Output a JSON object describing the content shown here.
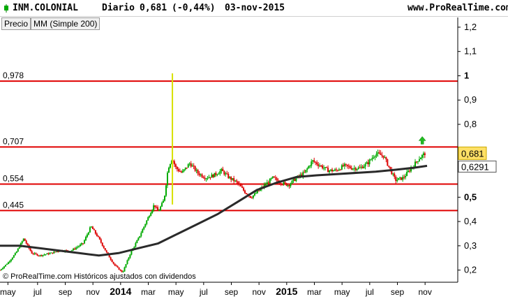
{
  "header": {
    "symbol": "INM.COLONIAL",
    "period": "Diario",
    "price": "0,681",
    "change": "(-0,44%)",
    "date": "03-nov-2015",
    "site": "www.ProRealTime.com"
  },
  "indicators": [
    "Precio",
    "MM (Simple 200)"
  ],
  "watermark": "© ProRealTime.com Históricos ajustados con dividendos",
  "colors": {
    "up": "#00aa00",
    "down": "#dd0000",
    "hline": "#e00000",
    "ma": "#2a2a2a",
    "spike": "#d8e000",
    "arrow": "#22bb22"
  },
  "chart_data": {
    "type": "candlestick",
    "y_axis": {
      "min": 0.15,
      "max": 1.24,
      "ticks": [
        {
          "v": 1.2,
          "label": "1,2",
          "bold": false
        },
        {
          "v": 1.1,
          "label": "1,1",
          "bold": false
        },
        {
          "v": 1.0,
          "label": "1",
          "bold": true
        },
        {
          "v": 0.9,
          "label": "0,9",
          "bold": false
        },
        {
          "v": 0.8,
          "label": "0,8",
          "bold": false
        },
        {
          "v": 0.5,
          "label": "0,5",
          "bold": true
        },
        {
          "v": 0.4,
          "label": "0,4",
          "bold": false
        },
        {
          "v": 0.3,
          "label": "0,3",
          "bold": false
        },
        {
          "v": 0.2,
          "label": "0,2",
          "bold": false
        }
      ]
    },
    "x_axis": {
      "labels": [
        {
          "label": "may",
          "t": 0.02,
          "bold": false
        },
        {
          "label": "jul",
          "t": 0.095,
          "bold": false
        },
        {
          "label": "sep",
          "t": 0.165,
          "bold": false
        },
        {
          "label": "nov",
          "t": 0.235,
          "bold": false
        },
        {
          "label": "2014",
          "t": 0.305,
          "bold": true
        },
        {
          "label": "mar",
          "t": 0.375,
          "bold": false
        },
        {
          "label": "may",
          "t": 0.445,
          "bold": false
        },
        {
          "label": "jul",
          "t": 0.515,
          "bold": false
        },
        {
          "label": "sep",
          "t": 0.585,
          "bold": false
        },
        {
          "label": "nov",
          "t": 0.655,
          "bold": false
        },
        {
          "label": "2015",
          "t": 0.725,
          "bold": true
        },
        {
          "label": "mar",
          "t": 0.795,
          "bold": false
        },
        {
          "label": "may",
          "t": 0.865,
          "bold": false
        },
        {
          "label": "jul",
          "t": 0.935,
          "bold": false
        },
        {
          "label": "sep",
          "t": 1.005,
          "bold": false
        },
        {
          "label": "nov",
          "t": 1.075,
          "bold": false
        }
      ]
    },
    "horizontal_lines": [
      {
        "value": 0.978,
        "label": "0,978"
      },
      {
        "value": 0.707,
        "label": "0,707"
      },
      {
        "value": 0.554,
        "label": "0,554"
      },
      {
        "value": 0.445,
        "label": "0,445"
      }
    ],
    "price_path": [
      [
        0.0,
        0.2
      ],
      [
        0.02,
        0.23
      ],
      [
        0.04,
        0.27
      ],
      [
        0.06,
        0.33
      ],
      [
        0.08,
        0.27
      ],
      [
        0.1,
        0.26
      ],
      [
        0.13,
        0.27
      ],
      [
        0.15,
        0.28
      ],
      [
        0.18,
        0.28
      ],
      [
        0.21,
        0.31
      ],
      [
        0.23,
        0.38
      ],
      [
        0.25,
        0.33
      ],
      [
        0.27,
        0.27
      ],
      [
        0.29,
        0.22
      ],
      [
        0.31,
        0.19
      ],
      [
        0.33,
        0.27
      ],
      [
        0.35,
        0.33
      ],
      [
        0.37,
        0.4
      ],
      [
        0.39,
        0.47
      ],
      [
        0.4,
        0.44
      ],
      [
        0.415,
        0.49
      ],
      [
        0.425,
        0.62
      ],
      [
        0.435,
        0.66
      ],
      [
        0.445,
        0.62
      ],
      [
        0.46,
        0.6
      ],
      [
        0.48,
        0.64
      ],
      [
        0.5,
        0.6
      ],
      [
        0.52,
        0.58
      ],
      [
        0.54,
        0.59
      ],
      [
        0.56,
        0.61
      ],
      [
        0.58,
        0.58
      ],
      [
        0.6,
        0.56
      ],
      [
        0.62,
        0.52
      ],
      [
        0.635,
        0.5
      ],
      [
        0.65,
        0.52
      ],
      [
        0.67,
        0.55
      ],
      [
        0.69,
        0.58
      ],
      [
        0.71,
        0.56
      ],
      [
        0.73,
        0.55
      ],
      [
        0.75,
        0.58
      ],
      [
        0.77,
        0.6
      ],
      [
        0.79,
        0.65
      ],
      [
        0.81,
        0.63
      ],
      [
        0.83,
        0.61
      ],
      [
        0.85,
        0.61
      ],
      [
        0.87,
        0.63
      ],
      [
        0.89,
        0.62
      ],
      [
        0.91,
        0.62
      ],
      [
        0.93,
        0.64
      ],
      [
        0.95,
        0.68
      ],
      [
        0.97,
        0.67
      ],
      [
        0.985,
        0.62
      ],
      [
        1.0,
        0.57
      ],
      [
        1.02,
        0.58
      ],
      [
        1.04,
        0.62
      ],
      [
        1.06,
        0.66
      ],
      [
        1.075,
        0.681
      ]
    ],
    "ma_path": [
      [
        0.0,
        0.3
      ],
      [
        0.05,
        0.3
      ],
      [
        0.1,
        0.29
      ],
      [
        0.15,
        0.28
      ],
      [
        0.2,
        0.27
      ],
      [
        0.25,
        0.26
      ],
      [
        0.3,
        0.27
      ],
      [
        0.35,
        0.29
      ],
      [
        0.4,
        0.31
      ],
      [
        0.45,
        0.35
      ],
      [
        0.5,
        0.39
      ],
      [
        0.55,
        0.43
      ],
      [
        0.6,
        0.48
      ],
      [
        0.65,
        0.53
      ],
      [
        0.7,
        0.56
      ],
      [
        0.75,
        0.583
      ],
      [
        0.8,
        0.59
      ],
      [
        0.85,
        0.595
      ],
      [
        0.9,
        0.6
      ],
      [
        0.95,
        0.605
      ],
      [
        1.0,
        0.613
      ],
      [
        1.05,
        0.622
      ],
      [
        1.08,
        0.629
      ]
    ],
    "spike": {
      "t": 0.436,
      "low": 0.47,
      "high": 1.01
    },
    "last_price": {
      "value": 0.681,
      "label": "0,681"
    },
    "ma_value": {
      "value": 0.6291,
      "label": "0,6291"
    },
    "hidden_label": {
      "value": 0.707,
      "label": "0,707"
    }
  }
}
